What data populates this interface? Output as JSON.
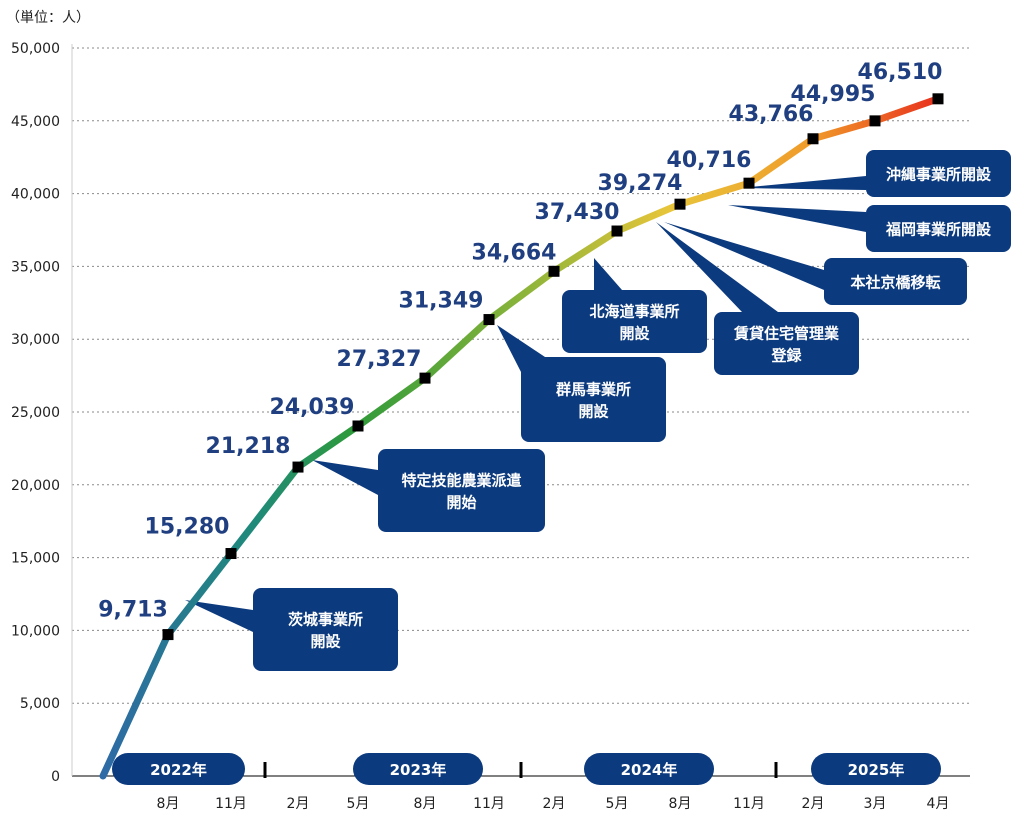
{
  "chart_data": {
    "type": "line",
    "unit_label": "（単位：人）",
    "ylim": [
      0,
      50000
    ],
    "y_ticks": [
      "0",
      "5,000",
      "10,000",
      "15,000",
      "20,000",
      "25,000",
      "30,000",
      "35,000",
      "40,000",
      "45,000",
      "50,000"
    ],
    "grid": true,
    "x": [
      "",
      "8月",
      "11月",
      "2月",
      "5月",
      "8月",
      "11月",
      "2月",
      "5月",
      "8月",
      "11月",
      "2月",
      "3月",
      "4月"
    ],
    "values": [
      0,
      9713,
      15280,
      21218,
      24039,
      27327,
      31349,
      34664,
      37430,
      39274,
      40716,
      43766,
      44995,
      46510
    ],
    "value_labels": [
      "",
      "9,713",
      "15,280",
      "21,218",
      "24,039",
      "27,327",
      "31,349",
      "34,664",
      "37,430",
      "39,274",
      "40,716",
      "43,766",
      "44,995",
      "46,510"
    ],
    "years": [
      "2022年",
      "2023年",
      "2024年",
      "2025年"
    ],
    "annotations": [
      {
        "lines": [
          "茨城事業所",
          "開設"
        ],
        "point": 1
      },
      {
        "lines": [
          "特定技能農業派遣",
          "開始"
        ],
        "point": 3
      },
      {
        "lines": [
          "群馬事業所",
          "開設"
        ],
        "point": 6
      },
      {
        "lines": [
          "北海道事業所",
          "開設"
        ],
        "point": 8
      },
      {
        "lines": [
          "賃貸住宅管理業",
          "登録"
        ],
        "point": 9
      },
      {
        "lines": [
          "本社京橋移転"
        ],
        "point": 9
      },
      {
        "lines": [
          "福岡事業所開設"
        ],
        "point": 9
      },
      {
        "lines": [
          "沖縄事業所開設"
        ],
        "point": 10
      }
    ],
    "colors": {
      "gradient": [
        "#2e6aa6",
        "#1e9a5a",
        "#2e9a3a",
        "#8ab43a",
        "#e8c53a",
        "#f09a2a",
        "#e8301e"
      ],
      "marker": "#000000",
      "value_text": "#1f3f80",
      "box": "#0c3a7e",
      "grid": "#8a8a8a",
      "axis": "#000000"
    }
  }
}
